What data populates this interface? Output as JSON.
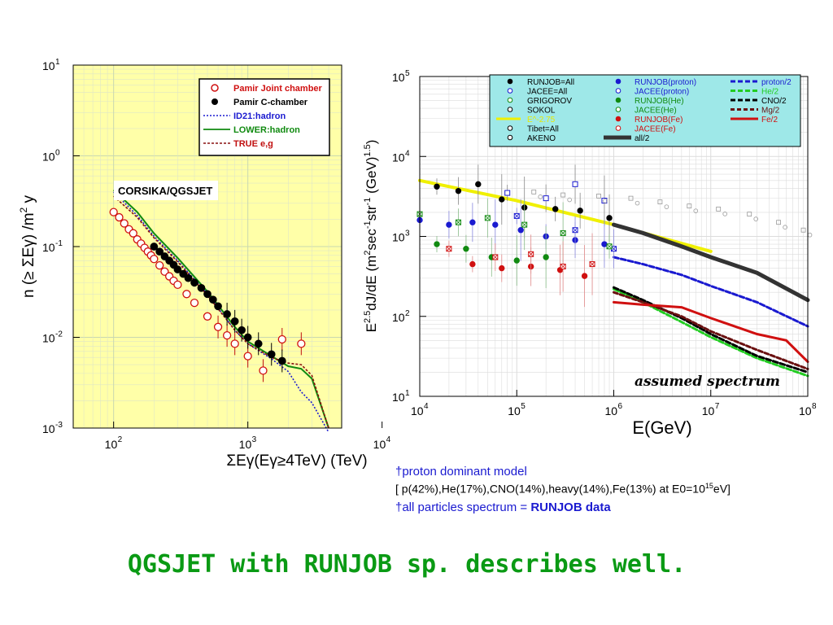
{
  "left_chart": {
    "y_ticks": [
      "10",
      "10",
      "10",
      "10",
      "10"
    ],
    "y_tick_exps": [
      "1",
      "0",
      "-1",
      "-2",
      "-3"
    ],
    "x_ticks": [
      "10",
      "10",
      "10"
    ],
    "x_tick_exps": [
      "2",
      "3",
      "4"
    ],
    "ylabel_parts": [
      "n (≥ ΣEγ) /m",
      "2",
      " y"
    ],
    "xlabel": "ΣEγ(Eγ≥4TeV) (TeV)",
    "annotation": "CORSIKA/QGSJET",
    "legend": [
      {
        "label": "Pamir Joint chamber",
        "color": "#d01010"
      },
      {
        "label": "Pamir C-chamber",
        "color": "#000000"
      },
      {
        "label": "ID21:hadron",
        "color": "#1a1ad0"
      },
      {
        "label": "LOWER:hadron",
        "color": "#108a10"
      },
      {
        "label": "TRUE e,g",
        "color": "#c01010"
      }
    ]
  },
  "right_chart": {
    "y_ticks": [
      "10",
      "10",
      "10",
      "10",
      "10"
    ],
    "y_tick_exps": [
      "5",
      "4",
      "3",
      "2",
      "1"
    ],
    "x_ticks": [
      "10",
      "10",
      "10",
      "10",
      "10"
    ],
    "x_tick_exps": [
      "4",
      "5",
      "6",
      "7",
      "8"
    ],
    "xlabel": "E(GeV)",
    "annotation": "assumed spectrum",
    "legend_col1": [
      {
        "label": "RUNJOB=All",
        "color": "#000000"
      },
      {
        "label": "JACEE=All",
        "color": "#1a1ad0"
      },
      {
        "label": "GRIGOROV",
        "color": "#108a10"
      },
      {
        "label": "SOKOL",
        "color": "#000000"
      },
      {
        "label": "E^-2.75",
        "color": "#e8e800"
      },
      {
        "label": "Tibet=All",
        "color": "#000000"
      },
      {
        "label": "AKENO",
        "color": "#000000"
      }
    ],
    "legend_col2": [
      {
        "label": "RUNJOB(proton)",
        "color": "#1a1ad0"
      },
      {
        "label": "JACEE(proton)",
        "color": "#1a1ad0"
      },
      {
        "label": "RUNJOB(He)",
        "color": "#108a10"
      },
      {
        "label": "JACEE(He)",
        "color": "#108a10"
      },
      {
        "label": "RUNJOB(Fe)",
        "color": "#d01010"
      },
      {
        "label": "JACEE(Fe)",
        "color": "#d01010"
      },
      {
        "label": "all/2",
        "color": "#000000"
      }
    ],
    "legend_col3": [
      {
        "label": "proton/2",
        "color": "#1a1ad0"
      },
      {
        "label": "He/2",
        "color": "#22cc22"
      },
      {
        "label": "CNO/2",
        "color": "#000000"
      },
      {
        "label": "Mg/2",
        "color": "#6a1010"
      },
      {
        "label": "Fe/2",
        "color": "#d01010"
      }
    ]
  },
  "chart_data": [
    {
      "type": "scatter",
      "xlabel": "ΣEγ(Eγ≥4TeV) (TeV)",
      "ylabel": "n (≥ ΣEγ) /m2 y",
      "xscale": "log",
      "yscale": "log",
      "xlim": [
        50,
        5000
      ],
      "ylim": [
        0.001,
        10
      ],
      "grid": true,
      "legend_position": "top-right",
      "series": [
        {
          "name": "Pamir Joint chamber",
          "x": [
            100,
            110,
            120,
            130,
            140,
            150,
            160,
            170,
            180,
            190,
            200,
            220,
            240,
            260,
            280,
            300,
            350,
            400,
            500,
            600,
            700,
            800,
            1000,
            1300,
            1800,
            2500
          ],
          "y": [
            0.24,
            0.21,
            0.18,
            0.155,
            0.14,
            0.12,
            0.108,
            0.097,
            0.088,
            0.08,
            0.073,
            0.062,
            0.053,
            0.047,
            0.042,
            0.038,
            0.03,
            0.024,
            0.017,
            0.013,
            0.0105,
            0.0085,
            0.0062,
            0.0043,
            0.0095,
            0.0085
          ]
        },
        {
          "name": "Pamir C-chamber",
          "x": [
            200,
            220,
            240,
            260,
            280,
            300,
            330,
            360,
            400,
            450,
            500,
            550,
            600,
            700,
            800,
            900,
            1000,
            1200,
            1500,
            1800
          ],
          "y": [
            0.1,
            0.088,
            0.078,
            0.07,
            0.063,
            0.056,
            0.05,
            0.045,
            0.04,
            0.035,
            0.03,
            0.026,
            0.022,
            0.018,
            0.015,
            0.012,
            0.01,
            0.0085,
            0.0065,
            0.0055
          ]
        },
        {
          "name": "ID21:hadron",
          "x": [
            100,
            150,
            200,
            300,
            500,
            800,
            1000,
            1500,
            2000,
            2500,
            3000,
            4000
          ],
          "y": [
            0.4,
            0.22,
            0.13,
            0.07,
            0.03,
            0.012,
            0.0085,
            0.0058,
            0.0042,
            0.0025,
            0.0019,
            0.0009
          ]
        },
        {
          "name": "LOWER:hadron",
          "x": [
            100,
            150,
            200,
            300,
            500,
            800,
            1000,
            1500,
            2000,
            2500,
            3000,
            4000
          ],
          "y": [
            0.42,
            0.24,
            0.14,
            0.075,
            0.032,
            0.013,
            0.009,
            0.0062,
            0.0048,
            0.0045,
            0.0035,
            0.001
          ]
        },
        {
          "name": "TRUE e,g",
          "x": [
            100,
            150,
            200,
            300,
            500,
            800,
            1000,
            1500,
            2000,
            2500,
            3000,
            4000
          ],
          "y": [
            0.36,
            0.21,
            0.125,
            0.068,
            0.029,
            0.012,
            0.0085,
            0.006,
            0.0052,
            0.005,
            0.0038,
            0.001
          ]
        }
      ]
    },
    {
      "type": "scatter",
      "xlabel": "E(GeV)",
      "ylabel": "E2.5dJ/dE (m2sec-1str-1 (GeV)1.5)",
      "xscale": "log",
      "yscale": "log",
      "xlim": [
        10000,
        100000000
      ],
      "ylim": [
        10,
        100000
      ],
      "grid": true,
      "legend_position": "top",
      "series": [
        {
          "name": "RUNJOB=All",
          "x": [
            15000,
            25000,
            40000,
            70000,
            120000,
            250000,
            450000,
            900000
          ],
          "y": [
            4200,
            3700,
            4500,
            2900,
            2300,
            2200,
            2100,
            1700
          ]
        },
        {
          "name": "JACEE=All",
          "x": [
            80000,
            200000,
            400000,
            800000
          ],
          "y": [
            3500,
            3000,
            4500,
            2800
          ]
        },
        {
          "name": "RUNJOB(proton)",
          "x": [
            10000,
            20000,
            35000,
            60000,
            110000,
            200000,
            400000,
            800000
          ],
          "y": [
            1600,
            1400,
            1500,
            1400,
            1200,
            1000,
            900,
            800
          ]
        },
        {
          "name": "JACEE(proton)",
          "x": [
            100000,
            400000,
            1000000
          ],
          "y": [
            1800,
            1200,
            700
          ]
        },
        {
          "name": "RUNJOB(He)",
          "x": [
            15000,
            30000,
            55000,
            100000,
            200000
          ],
          "y": [
            800,
            700,
            550,
            500,
            550
          ]
        },
        {
          "name": "JACEE(He)",
          "x": [
            10000,
            25000,
            50000,
            120000,
            300000,
            900000
          ],
          "y": [
            1900,
            1500,
            1700,
            1400,
            1100,
            750
          ]
        },
        {
          "name": "RUNJOB(Fe)",
          "x": [
            35000,
            70000,
            140000,
            280000,
            500000
          ],
          "y": [
            450,
            400,
            420,
            380,
            320
          ]
        },
        {
          "name": "JACEE(Fe)",
          "x": [
            20000,
            60000,
            140000,
            300000,
            600000
          ],
          "y": [
            700,
            550,
            600,
            420,
            450
          ]
        },
        {
          "name": "E^-2.75",
          "x": [
            10000,
            100000,
            1000000,
            10000000
          ],
          "y": [
            5000,
            2800,
            1400,
            650
          ]
        },
        {
          "name": "all/2",
          "x": [
            1000000,
            2000000,
            5000000,
            10000000,
            30000000,
            100000000
          ],
          "y": [
            1400,
            1100,
            750,
            550,
            350,
            160
          ]
        },
        {
          "name": "proton/2",
          "x": [
            1000000,
            2000000,
            5000000,
            10000000,
            30000000,
            100000000
          ],
          "y": [
            550,
            450,
            330,
            240,
            150,
            75
          ]
        },
        {
          "name": "He/2",
          "x": [
            1000000,
            2000000,
            5000000,
            10000000,
            30000000,
            100000000
          ],
          "y": [
            220,
            150,
            85,
            55,
            30,
            18
          ]
        },
        {
          "name": "CNO/2",
          "x": [
            1000000,
            2000000,
            5000000,
            10000000,
            30000000,
            100000000
          ],
          "y": [
            230,
            160,
            95,
            60,
            32,
            20
          ]
        },
        {
          "name": "Mg/2",
          "x": [
            1000000,
            2000000,
            5000000,
            10000000,
            30000000,
            100000000
          ],
          "y": [
            200,
            150,
            100,
            65,
            38,
            22
          ]
        },
        {
          "name": "Fe/2",
          "x": [
            1000000,
            2000000,
            5000000,
            10000000,
            30000000,
            60000000,
            100000000
          ],
          "y": [
            150,
            140,
            130,
            95,
            60,
            50,
            27
          ]
        }
      ]
    }
  ],
  "notes": {
    "line1": "†proton dominant model",
    "line2_pre": "[ p(42%),He(17%),CNO(14%),heavy(14%),Fe(13%) at E0=10",
    "line2_sup": "15",
    "line2_post": "eV]",
    "line3_pre": "†all particles spectrum = ",
    "line3_bold": "RUNJOB data"
  },
  "conclusion": "QGSJET with RUNJOB sp. describes well."
}
